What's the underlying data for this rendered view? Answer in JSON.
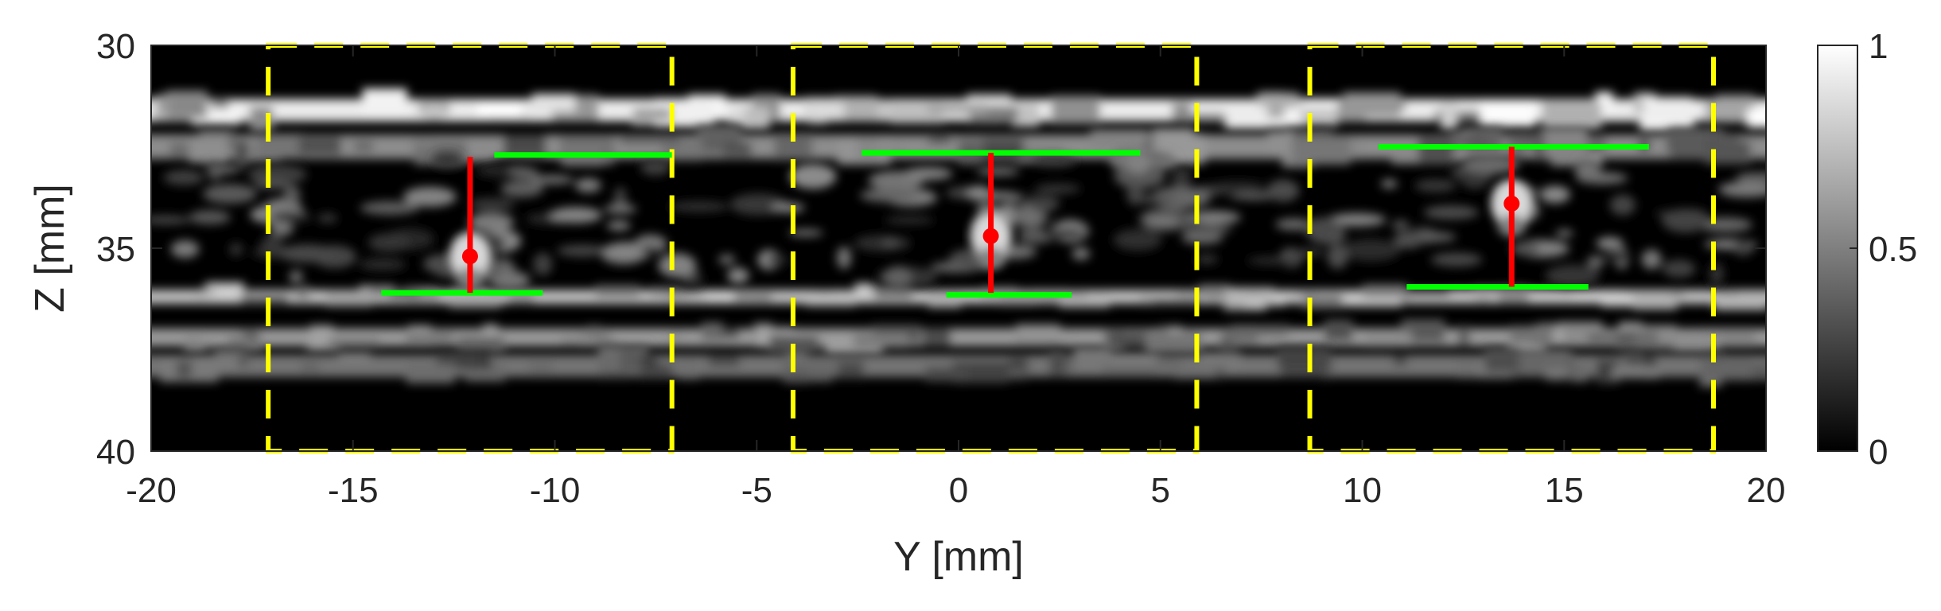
{
  "chart_data": {
    "type": "heatmap",
    "xlabel": "Y [mm]",
    "ylabel": "Z [mm]",
    "xlim": [
      -20,
      20
    ],
    "ylim": [
      30,
      40
    ],
    "y_reversed": true,
    "x_ticks": [
      -20,
      -15,
      -10,
      -5,
      0,
      5,
      10,
      15,
      20
    ],
    "y_ticks": [
      30,
      35,
      40
    ],
    "colormap": "gray",
    "colorbar": {
      "range": [
        0,
        1
      ],
      "ticks": [
        0,
        0.5,
        1
      ],
      "tick_labels": [
        "0",
        "0.5",
        "1"
      ]
    },
    "colors": {
      "box": "#ffff00",
      "boundary": "#00ff00",
      "marker": "#ff0000"
    },
    "bright_bands": [
      {
        "z": 31.6,
        "intensity": 0.92,
        "thickness": 0.55
      },
      {
        "z": 32.5,
        "intensity": 0.55,
        "thickness": 0.6
      },
      {
        "z": 36.2,
        "intensity": 0.75,
        "thickness": 0.35
      },
      {
        "z": 37.2,
        "intensity": 0.6,
        "thickness": 0.45
      },
      {
        "z": 37.9,
        "intensity": 0.45,
        "thickness": 0.55
      }
    ],
    "regions": [
      {
        "y_range": [
          -17.1,
          -7.1
        ],
        "z_range": [
          30,
          40
        ]
      },
      {
        "y_range": [
          -4.1,
          5.9
        ],
        "z_range": [
          30,
          40
        ]
      },
      {
        "y_range": [
          8.7,
          18.7
        ],
        "z_range": [
          30,
          40
        ]
      }
    ],
    "upper_walls": [
      {
        "y_range": [
          -11.5,
          -7.1
        ],
        "z": 32.7
      },
      {
        "y_range": [
          -2.4,
          4.5
        ],
        "z": 32.65
      },
      {
        "y_range": [
          10.4,
          17.1
        ],
        "z": 32.5
      }
    ],
    "lower_walls": [
      {
        "y_range": [
          -14.3,
          -10.3
        ],
        "z": 36.1
      },
      {
        "y_range": [
          -0.3,
          2.8
        ],
        "z": 36.15
      },
      {
        "y_range": [
          11.1,
          15.6
        ],
        "z": 35.95
      }
    ],
    "measurements": [
      {
        "y": -12.1,
        "z_top": 32.75,
        "z_bottom": 36.1,
        "z_point": 35.2
      },
      {
        "y": 0.8,
        "z_top": 32.65,
        "z_bottom": 36.1,
        "z_point": 34.7
      },
      {
        "y": 13.7,
        "z_top": 32.5,
        "z_bottom": 35.95,
        "z_point": 33.9
      }
    ]
  }
}
